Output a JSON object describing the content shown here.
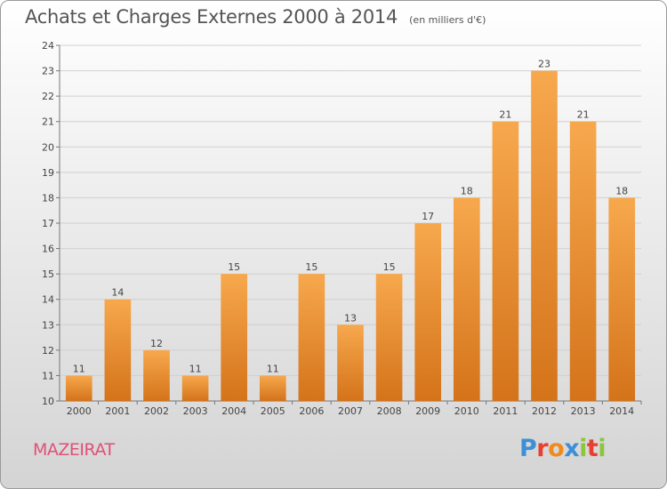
{
  "header": {
    "title": "Achats et Charges Externes 2000 à 2014",
    "subtitle": "(en milliers d'€)"
  },
  "commune": "MAZEIRAT",
  "logo": {
    "text": "Proxiti",
    "letter_colors": [
      "#3d8fd6",
      "#e8402e",
      "#f08a1e",
      "#3d8fd6",
      "#8cc63f",
      "#e8402e",
      "#8cc63f"
    ]
  },
  "colors": {
    "bar_top": "#f7a84d",
    "bar_bottom": "#d4731a",
    "grid": "#d0d0d0",
    "axis_text": "#444444",
    "commune": "#e0507a"
  },
  "chart_data": {
    "type": "bar",
    "categories": [
      "2000",
      "2001",
      "2002",
      "2003",
      "2004",
      "2005",
      "2006",
      "2007",
      "2008",
      "2009",
      "2010",
      "2011",
      "2012",
      "2013",
      "2014"
    ],
    "values": [
      11,
      14,
      12,
      11,
      15,
      11,
      15,
      13,
      15,
      17,
      18,
      21,
      23,
      21,
      18
    ],
    "ylim": [
      10,
      24
    ],
    "yticks": [
      10,
      11,
      12,
      13,
      14,
      15,
      16,
      17,
      18,
      19,
      20,
      21,
      22,
      23,
      24
    ],
    "grid": true,
    "data_labels": true
  }
}
